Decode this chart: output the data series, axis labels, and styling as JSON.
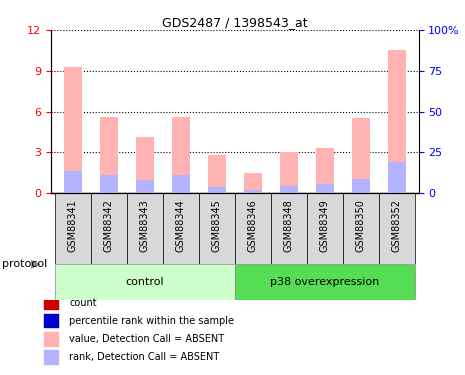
{
  "title": "GDS2487 / 1398543_at",
  "samples": [
    "GSM88341",
    "GSM88342",
    "GSM88343",
    "GSM88344",
    "GSM88345",
    "GSM88346",
    "GSM88348",
    "GSM88349",
    "GSM88350",
    "GSM88352"
  ],
  "groups": [
    {
      "label": "control",
      "color": "#ccffcc",
      "n": 5
    },
    {
      "label": "p38 overexpression",
      "color": "#55dd55",
      "n": 5
    }
  ],
  "value_absent": [
    9.3,
    5.6,
    4.1,
    5.6,
    2.8,
    1.5,
    3.0,
    3.3,
    5.5,
    10.5
  ],
  "rank_absent": [
    1.65,
    1.35,
    0.95,
    1.35,
    0.45,
    0.25,
    0.55,
    0.7,
    1.05,
    2.3
  ],
  "left_ylim": [
    0,
    12
  ],
  "left_yticks": [
    0,
    3,
    6,
    9,
    12
  ],
  "right_ylim": [
    0,
    100
  ],
  "right_yticks": [
    0,
    25,
    50,
    75,
    100
  ],
  "bar_color_absent": "#ffb3b3",
  "rank_color_absent": "#b3b3ff",
  "bar_width": 0.5,
  "protocol_label": "protocol",
  "legend_items": [
    {
      "color": "#cc0000",
      "label": "count"
    },
    {
      "color": "#0000cc",
      "label": "percentile rank within the sample"
    },
    {
      "color": "#ffb3b3",
      "label": "value, Detection Call = ABSENT"
    },
    {
      "color": "#b3b3ff",
      "label": "rank, Detection Call = ABSENT"
    }
  ]
}
